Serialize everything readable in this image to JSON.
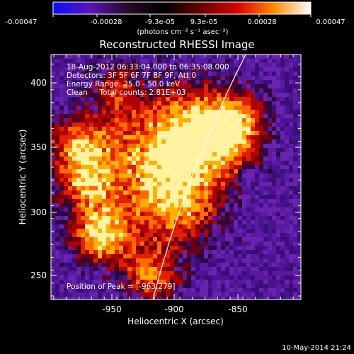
{
  "colorbar": {
    "ticks": [
      "-0.00047",
      "-0.00028",
      "-9.3e-05",
      "9.3e-05",
      "0.00028",
      "0.00047"
    ],
    "unit_label": "(photons cm⁻² s⁻¹ asec⁻²)",
    "stops": [
      "#0b0bff",
      "#5a16b8",
      "#2a0a2a",
      "#000000",
      "#6a0000",
      "#d80000",
      "#ff8a00",
      "#ffffff"
    ]
  },
  "title": "Reconstructed RHESSI Image",
  "info_lines": [
    "18-Aug-2012 06:33:04.000 to 06:35:08.000",
    "Detectors: 3F 5F 6F 7F 8F 9F, Att 0",
    "Energy Range: 25.0 - 50.0 keV",
    "Clean     Total counts: 2.81E+03"
  ],
  "peak_label": "Position of Peak = [-963,279]",
  "footer_timestamp": "10-May-2014 21:24",
  "axes": {
    "xlabel": "Heliocentric X (arcsec)",
    "ylabel": "Heliocentric Y (arcsec)",
    "x_ticks": [
      -950,
      -900,
      -850
    ],
    "y_ticks": [
      250,
      300,
      350,
      400
    ],
    "x_range": [
      -993,
      -833
    ],
    "y_range": [
      230,
      425
    ]
  },
  "image_map": {
    "description_palette": "purple background with orange/red/yellow hot regions",
    "background_color": "#5a1aa0",
    "limb_line_color": "#ffffff"
  }
}
